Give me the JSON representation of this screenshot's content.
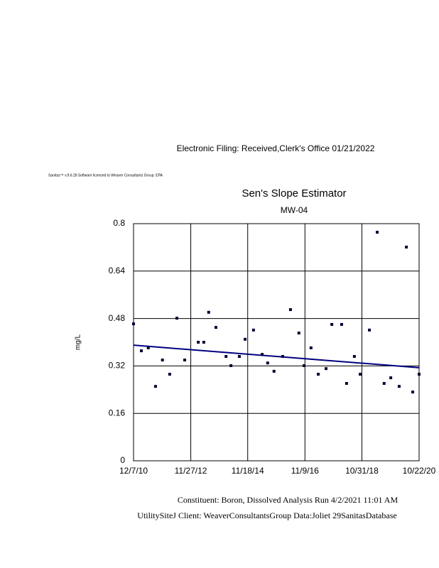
{
  "header": {
    "filing": "Electronic Filing: Received,Clerk's Office 01/21/2022",
    "software": "Sanitas™ v.9.6.28 Software licensed to Weaver Consultants Group. EPA"
  },
  "chart_data": {
    "type": "scatter",
    "title": "Sen's Slope Estimator",
    "subtitle": "MW-04",
    "y_label": "mg/L",
    "xlim": [
      2010.93,
      2020.81
    ],
    "xticks": [
      {
        "value": 2010.93,
        "label": "12/7/10"
      },
      {
        "value": 2012.91,
        "label": "11/27/12"
      },
      {
        "value": 2014.88,
        "label": "11/18/14"
      },
      {
        "value": 2016.86,
        "label": "11/9/16"
      },
      {
        "value": 2018.83,
        "label": "10/31/18"
      },
      {
        "value": 2020.81,
        "label": "10/22/20"
      }
    ],
    "ylim": [
      0,
      0.8
    ],
    "yticks": [
      0,
      0.16,
      0.32,
      0.48,
      0.64,
      0.8
    ],
    "grid": true,
    "points": {
      "color": "#000033",
      "x": [
        2010.93,
        2011.2,
        2011.44,
        2011.69,
        2011.93,
        2012.18,
        2012.43,
        2012.7,
        2013.17,
        2013.36,
        2013.53,
        2013.78,
        2014.13,
        2014.3,
        2014.59,
        2014.79,
        2015.08,
        2015.38,
        2015.57,
        2015.79,
        2016.09,
        2016.36,
        2016.65,
        2016.83,
        2017.07,
        2017.32,
        2017.59,
        2017.79,
        2018.13,
        2018.3,
        2018.57,
        2018.77,
        2019.09,
        2019.36,
        2019.6,
        2019.83,
        2020.12,
        2020.37,
        2020.59,
        2020.81
      ],
      "values": [
        0.462,
        0.371,
        0.381,
        0.251,
        0.34,
        0.292,
        0.481,
        0.34,
        0.4,
        0.4,
        0.501,
        0.45,
        0.352,
        0.321,
        0.352,
        0.41,
        0.441,
        0.359,
        0.33,
        0.302,
        0.352,
        0.51,
        0.431,
        0.321,
        0.381,
        0.292,
        0.311,
        0.46,
        0.46,
        0.261,
        0.352,
        0.292,
        0.441,
        0.771,
        0.261,
        0.28,
        0.251,
        0.721,
        0.232,
        0.292
      ]
    },
    "trend": {
      "color": "#000080",
      "x": [
        2010.93,
        2020.81
      ],
      "values": [
        0.39,
        0.314
      ]
    }
  },
  "footer": {
    "line1": "Constituent: Boron, Dissolved Analysis Run 4/2/2021 11:01 AM",
    "line2": "UtilitySiteJ Client: WeaverConsultantsGroup Data:Joliet 29SanitasDatabase"
  }
}
